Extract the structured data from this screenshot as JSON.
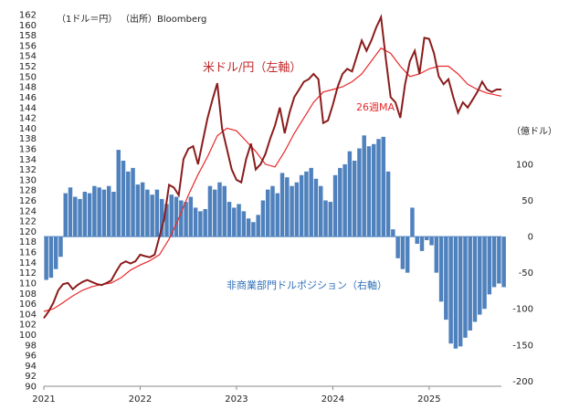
{
  "header": {
    "unit_note": "（1ドル＝円）",
    "source": "（出所）Bloomberg"
  },
  "annotations": {
    "usdjpy": "米ドル/円（左軸）",
    "ma": "26週MA",
    "position": "非商業部門ドルポジション（右軸）",
    "right_unit": "（億ドル）"
  },
  "colors": {
    "usdjpy": "#8b1c1c",
    "ma": "#e8282a",
    "bars": "#4f81bd",
    "annotation_red": "#c0282a",
    "annotation_blue": "#2e6fb8"
  },
  "chart_data": {
    "type": "bar+line",
    "left_axis": {
      "min": 90,
      "max": 162,
      "step": 2
    },
    "right_axis": {
      "min": -200,
      "max": 150,
      "ticks": [
        100,
        50,
        0,
        -50,
        -100,
        -150,
        -200
      ]
    },
    "x_axis": {
      "min": 2021,
      "max": 2025.75,
      "ticks": [
        "2021",
        "2022",
        "2023",
        "2024",
        "2025"
      ]
    },
    "series": [
      {
        "name": "米ドル/円（左軸）",
        "type": "line",
        "axis": "left",
        "points": [
          [
            2021.0,
            103.2
          ],
          [
            2021.05,
            104.5
          ],
          [
            2021.1,
            106.2
          ],
          [
            2021.15,
            108.6
          ],
          [
            2021.2,
            109.8
          ],
          [
            2021.25,
            110.0
          ],
          [
            2021.3,
            108.8
          ],
          [
            2021.35,
            109.6
          ],
          [
            2021.4,
            110.2
          ],
          [
            2021.45,
            110.6
          ],
          [
            2021.5,
            110.2
          ],
          [
            2021.55,
            109.8
          ],
          [
            2021.6,
            109.6
          ],
          [
            2021.65,
            110.0
          ],
          [
            2021.7,
            110.5
          ],
          [
            2021.75,
            112.2
          ],
          [
            2021.8,
            113.7
          ],
          [
            2021.85,
            114.2
          ],
          [
            2021.9,
            113.8
          ],
          [
            2021.95,
            114.2
          ],
          [
            2022.0,
            115.5
          ],
          [
            2022.05,
            115.2
          ],
          [
            2022.1,
            115.0
          ],
          [
            2022.15,
            115.5
          ],
          [
            2022.2,
            119.0
          ],
          [
            2022.25,
            122.5
          ],
          [
            2022.3,
            129.0
          ],
          [
            2022.35,
            128.5
          ],
          [
            2022.4,
            127.0
          ],
          [
            2022.45,
            134.0
          ],
          [
            2022.5,
            136.0
          ],
          [
            2022.55,
            136.5
          ],
          [
            2022.6,
            133.0
          ],
          [
            2022.65,
            137.5
          ],
          [
            2022.7,
            142.0
          ],
          [
            2022.75,
            145.5
          ],
          [
            2022.8,
            148.7
          ],
          [
            2022.85,
            140.0
          ],
          [
            2022.9,
            136.0
          ],
          [
            2022.95,
            132.0
          ],
          [
            2023.0,
            130.0
          ],
          [
            2023.05,
            129.5
          ],
          [
            2023.1,
            134.0
          ],
          [
            2023.15,
            137.0
          ],
          [
            2023.2,
            132.0
          ],
          [
            2023.25,
            133.0
          ],
          [
            2023.3,
            135.0
          ],
          [
            2023.35,
            138.0
          ],
          [
            2023.4,
            140.5
          ],
          [
            2023.45,
            144.0
          ],
          [
            2023.5,
            139.0
          ],
          [
            2023.55,
            143.0
          ],
          [
            2023.6,
            146.0
          ],
          [
            2023.65,
            147.5
          ],
          [
            2023.7,
            149.0
          ],
          [
            2023.75,
            149.5
          ],
          [
            2023.8,
            150.5
          ],
          [
            2023.85,
            149.5
          ],
          [
            2023.9,
            141.0
          ],
          [
            2023.95,
            141.5
          ],
          [
            2024.0,
            144.5
          ],
          [
            2024.05,
            148.0
          ],
          [
            2024.1,
            150.5
          ],
          [
            2024.15,
            151.5
          ],
          [
            2024.2,
            151.0
          ],
          [
            2024.25,
            154.0
          ],
          [
            2024.3,
            157.0
          ],
          [
            2024.35,
            155.0
          ],
          [
            2024.4,
            157.0
          ],
          [
            2024.45,
            159.5
          ],
          [
            2024.5,
            161.5
          ],
          [
            2024.55,
            153.5
          ],
          [
            2024.6,
            146.0
          ],
          [
            2024.65,
            145.0
          ],
          [
            2024.7,
            142.0
          ],
          [
            2024.75,
            148.5
          ],
          [
            2024.8,
            153.0
          ],
          [
            2024.85,
            155.0
          ],
          [
            2024.9,
            150.5
          ],
          [
            2024.95,
            157.5
          ],
          [
            2025.0,
            157.3
          ],
          [
            2025.05,
            154.5
          ],
          [
            2025.1,
            150.0
          ],
          [
            2025.15,
            148.5
          ],
          [
            2025.2,
            149.5
          ],
          [
            2025.25,
            146.0
          ],
          [
            2025.3,
            143.0
          ],
          [
            2025.35,
            145.0
          ],
          [
            2025.4,
            144.0
          ],
          [
            2025.45,
            145.5
          ],
          [
            2025.5,
            147.0
          ],
          [
            2025.55,
            149.0
          ],
          [
            2025.6,
            147.5
          ],
          [
            2025.65,
            147.0
          ],
          [
            2025.7,
            147.5
          ],
          [
            2025.75,
            147.5
          ]
        ]
      },
      {
        "name": "26週MA",
        "type": "line",
        "axis": "left",
        "points": [
          [
            2021.0,
            104.5
          ],
          [
            2021.1,
            105.0
          ],
          [
            2021.2,
            106.2
          ],
          [
            2021.3,
            107.5
          ],
          [
            2021.4,
            108.6
          ],
          [
            2021.5,
            109.3
          ],
          [
            2021.6,
            109.7
          ],
          [
            2021.7,
            110.0
          ],
          [
            2021.8,
            111.0
          ],
          [
            2021.9,
            112.5
          ],
          [
            2022.0,
            113.5
          ],
          [
            2022.1,
            114.3
          ],
          [
            2022.2,
            115.5
          ],
          [
            2022.3,
            118.5
          ],
          [
            2022.4,
            122.5
          ],
          [
            2022.5,
            127.0
          ],
          [
            2022.6,
            131.0
          ],
          [
            2022.7,
            134.5
          ],
          [
            2022.8,
            138.5
          ],
          [
            2022.9,
            140.0
          ],
          [
            2023.0,
            139.5
          ],
          [
            2023.1,
            137.5
          ],
          [
            2023.2,
            135.5
          ],
          [
            2023.3,
            133.0
          ],
          [
            2023.4,
            132.5
          ],
          [
            2023.5,
            135.5
          ],
          [
            2023.6,
            139.0
          ],
          [
            2023.7,
            142.0
          ],
          [
            2023.8,
            145.0
          ],
          [
            2023.9,
            147.0
          ],
          [
            2024.0,
            147.5
          ],
          [
            2024.1,
            148.0
          ],
          [
            2024.2,
            149.0
          ],
          [
            2024.3,
            150.5
          ],
          [
            2024.4,
            153.0
          ],
          [
            2024.5,
            155.5
          ],
          [
            2024.6,
            154.5
          ],
          [
            2024.7,
            152.0
          ],
          [
            2024.8,
            150.0
          ],
          [
            2024.9,
            150.5
          ],
          [
            2025.0,
            151.5
          ],
          [
            2025.1,
            152.0
          ],
          [
            2025.2,
            152.0
          ],
          [
            2025.3,
            150.5
          ],
          [
            2025.4,
            148.5
          ],
          [
            2025.5,
            147.5
          ],
          [
            2025.6,
            146.8
          ],
          [
            2025.7,
            146.4
          ],
          [
            2025.75,
            146.2
          ]
        ]
      },
      {
        "name": "非商業部門ドルポジション（右軸）",
        "type": "bar",
        "axis": "right",
        "points": [
          [
            2021.0,
            -60
          ],
          [
            2021.05,
            -57
          ],
          [
            2021.1,
            -45
          ],
          [
            2021.15,
            -28
          ],
          [
            2021.2,
            60
          ],
          [
            2021.25,
            68
          ],
          [
            2021.3,
            55
          ],
          [
            2021.35,
            52
          ],
          [
            2021.4,
            62
          ],
          [
            2021.45,
            60
          ],
          [
            2021.5,
            70
          ],
          [
            2021.55,
            68
          ],
          [
            2021.6,
            65
          ],
          [
            2021.65,
            70
          ],
          [
            2021.7,
            62
          ],
          [
            2021.75,
            120
          ],
          [
            2021.8,
            105
          ],
          [
            2021.85,
            90
          ],
          [
            2021.9,
            95
          ],
          [
            2021.95,
            72
          ],
          [
            2022.0,
            75
          ],
          [
            2022.05,
            65
          ],
          [
            2022.1,
            58
          ],
          [
            2022.15,
            65
          ],
          [
            2022.2,
            52
          ],
          [
            2022.25,
            45
          ],
          [
            2022.3,
            58
          ],
          [
            2022.35,
            55
          ],
          [
            2022.4,
            50
          ],
          [
            2022.45,
            48
          ],
          [
            2022.5,
            55
          ],
          [
            2022.55,
            40
          ],
          [
            2022.6,
            35
          ],
          [
            2022.65,
            38
          ],
          [
            2022.7,
            70
          ],
          [
            2022.75,
            65
          ],
          [
            2022.8,
            75
          ],
          [
            2022.85,
            70
          ],
          [
            2022.9,
            48
          ],
          [
            2022.95,
            40
          ],
          [
            2023.0,
            45
          ],
          [
            2023.05,
            35
          ],
          [
            2023.1,
            25
          ],
          [
            2023.15,
            20
          ],
          [
            2023.2,
            30
          ],
          [
            2023.25,
            50
          ],
          [
            2023.3,
            65
          ],
          [
            2023.35,
            70
          ],
          [
            2023.4,
            60
          ],
          [
            2023.45,
            88
          ],
          [
            2023.5,
            82
          ],
          [
            2023.55,
            70
          ],
          [
            2023.6,
            75
          ],
          [
            2023.65,
            85
          ],
          [
            2023.7,
            90
          ],
          [
            2023.75,
            95
          ],
          [
            2023.8,
            80
          ],
          [
            2023.85,
            70
          ],
          [
            2023.9,
            50
          ],
          [
            2023.95,
            48
          ],
          [
            2024.0,
            85
          ],
          [
            2024.05,
            95
          ],
          [
            2024.1,
            100
          ],
          [
            2024.15,
            118
          ],
          [
            2024.2,
            105
          ],
          [
            2024.25,
            122
          ],
          [
            2024.3,
            140
          ],
          [
            2024.35,
            125
          ],
          [
            2024.4,
            128
          ],
          [
            2024.45,
            135
          ],
          [
            2024.5,
            138
          ],
          [
            2024.55,
            90
          ],
          [
            2024.6,
            10
          ],
          [
            2024.65,
            -30
          ],
          [
            2024.7,
            -45
          ],
          [
            2024.75,
            -50
          ],
          [
            2024.8,
            40
          ],
          [
            2024.85,
            -10
          ],
          [
            2024.9,
            -20
          ],
          [
            2024.95,
            -5
          ],
          [
            2025.0,
            -12
          ],
          [
            2025.05,
            -50
          ],
          [
            2025.1,
            -90
          ],
          [
            2025.15,
            -115
          ],
          [
            2025.2,
            -148
          ],
          [
            2025.25,
            -155
          ],
          [
            2025.3,
            -152
          ],
          [
            2025.35,
            -140
          ],
          [
            2025.4,
            -130
          ],
          [
            2025.45,
            -118
          ],
          [
            2025.5,
            -108
          ],
          [
            2025.55,
            -100
          ],
          [
            2025.6,
            -80
          ],
          [
            2025.65,
            -70
          ],
          [
            2025.7,
            -65
          ],
          [
            2025.75,
            -70
          ]
        ]
      }
    ]
  }
}
